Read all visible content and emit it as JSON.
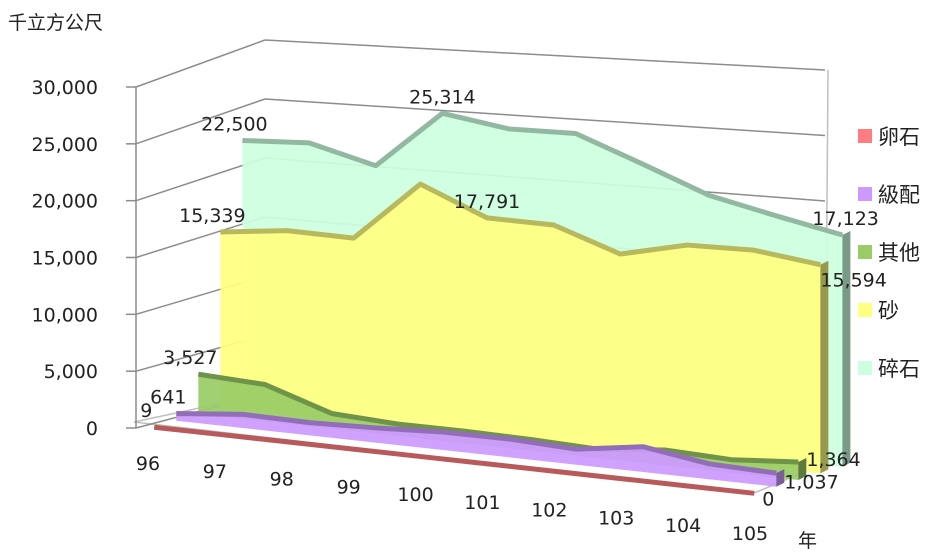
{
  "chart_data": {
    "type": "area",
    "ylabel": "千立方公尺",
    "xlabel": "年",
    "categories": [
      "96",
      "97",
      "98",
      "99",
      "100",
      "101",
      "102",
      "103",
      "104",
      "105"
    ],
    "ylim": [
      0,
      30000
    ],
    "yticks": [
      "0",
      "5,000",
      "10,000",
      "15,000",
      "20,000",
      "25,000",
      "30,000"
    ],
    "yticks_values": [
      0,
      5000,
      10000,
      15000,
      20000,
      25000,
      30000
    ],
    "series": [
      {
        "name": "卵石",
        "color": "#ff7c80",
        "values": [
          9,
          8,
          8,
          8,
          8,
          6,
          4,
          3,
          1,
          0
        ],
        "labels": [
          {
            "i": 0,
            "text": "9"
          },
          {
            "i": 9,
            "text": "0"
          }
        ]
      },
      {
        "name": "級配",
        "color": "#cc99ff",
        "values": [
          641,
          1200,
          1100,
          1250,
          1500,
          1500,
          1250,
          2000,
          1200,
          1037
        ],
        "labels": [
          {
            "i": 0,
            "text": "641"
          },
          {
            "i": 9,
            "text": "1,037"
          }
        ]
      },
      {
        "name": "其他",
        "color": "#99cc66",
        "values": [
          3527,
          3200,
          1300,
          1000,
          1000,
          900,
          700,
          1200,
          1000,
          1364
        ],
        "labels": [
          {
            "i": 0,
            "text": "3,527"
          },
          {
            "i": 9,
            "text": "1,364"
          }
        ]
      },
      {
        "name": "砂",
        "color": "#ffff80",
        "values": [
          15339,
          15800,
          15500,
          20300,
          17791,
          17500,
          15500,
          16500,
          16400,
          15594
        ],
        "labels": [
          {
            "i": 0,
            "text": "15,339"
          },
          {
            "i": 4,
            "text": "17,791"
          },
          {
            "i": 9,
            "text": "15,594"
          }
        ]
      },
      {
        "name": "碎石",
        "color": "#ccffe0",
        "values": [
          22500,
          22500,
          20800,
          25314,
          24200,
          24000,
          21800,
          19600,
          18300,
          17123
        ],
        "labels": [
          {
            "i": 0,
            "text": "22,500"
          },
          {
            "i": 3,
            "text": "25,314"
          },
          {
            "i": 9,
            "text": "17,123"
          }
        ]
      }
    ],
    "legend_position": "right",
    "grid": true
  }
}
